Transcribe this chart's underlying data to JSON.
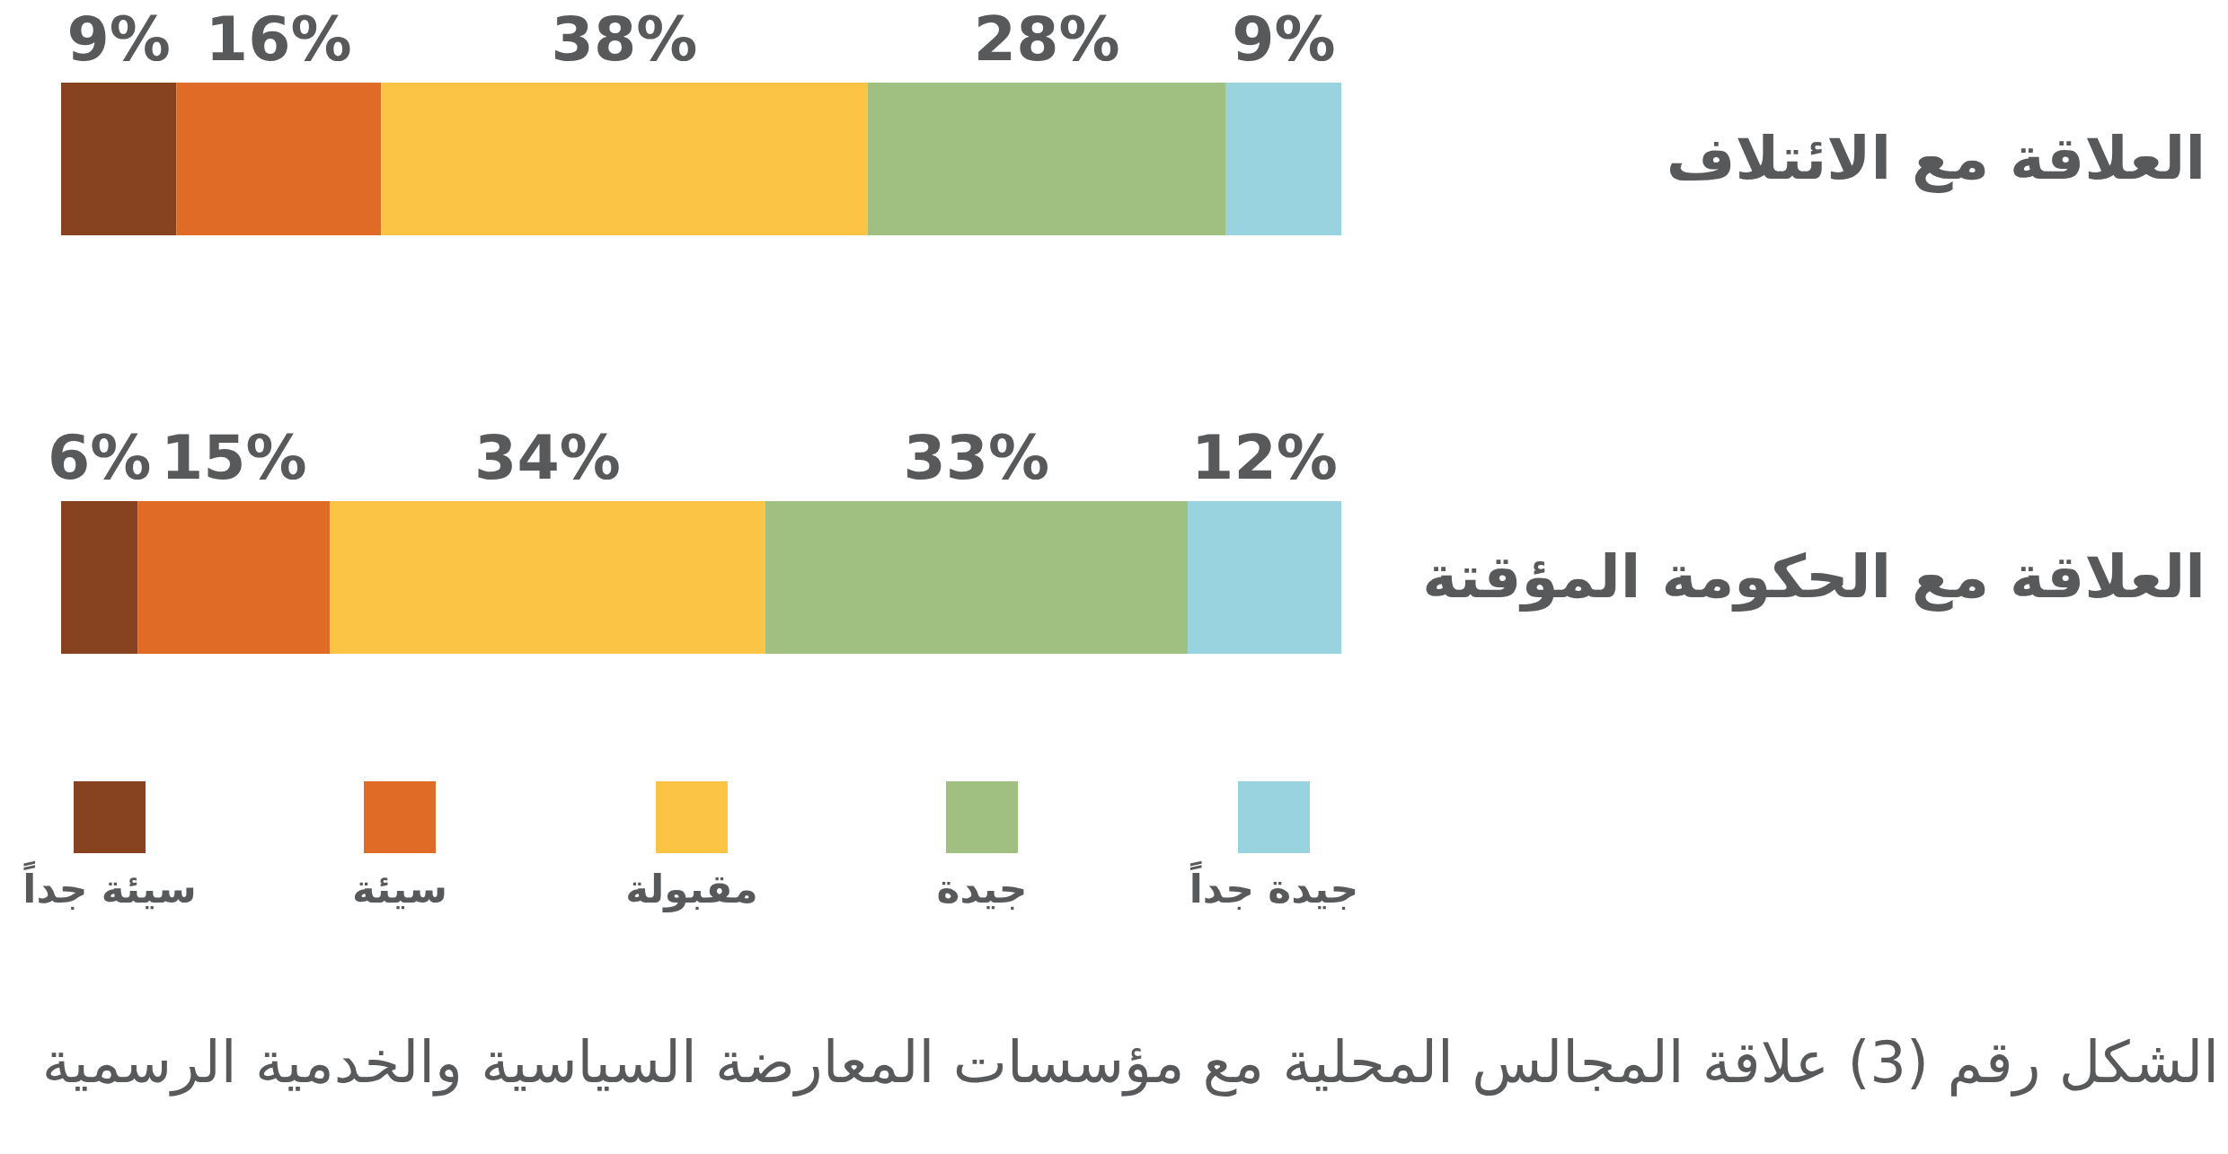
{
  "chart_data": {
    "type": "bar",
    "stacked": true,
    "orientation": "horizontal",
    "legend": "bottom",
    "categories": [
      "العلاقة مع الائتلاف",
      "العلاقة مع الحكومة المؤقتة"
    ],
    "series": [
      {
        "name": "سيئة جداً",
        "color": "#87431f",
        "values": [
          9,
          6
        ],
        "value_labels": [
          "9%",
          "6%"
        ]
      },
      {
        "name": "سيئة",
        "color": "#e06b27",
        "values": [
          16,
          15
        ],
        "value_labels": [
          "16%",
          "15%"
        ]
      },
      {
        "name": "مقبولة",
        "color": "#fcc445",
        "values": [
          38,
          34
        ],
        "value_labels": [
          "38%",
          "34%"
        ]
      },
      {
        "name": "جيدة",
        "color": "#9fc080",
        "values": [
          28,
          33
        ],
        "value_labels": [
          "28%",
          "33%"
        ]
      },
      {
        "name": "جيدة جداً",
        "color": "#99d3df",
        "values": [
          9,
          12
        ],
        "value_labels": [
          "9%",
          "12%"
        ]
      }
    ],
    "annotations": [
      "الشكل رقم (3) علاقة المجالس المحلية مع مؤسسات المعارضة السياسية والخدمية الرسمية"
    ]
  }
}
